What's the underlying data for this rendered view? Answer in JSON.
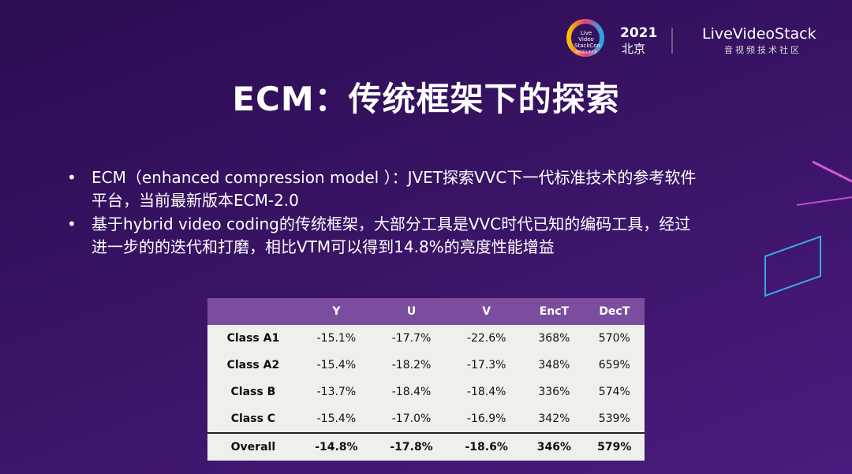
{
  "header": {
    "logo": {
      "lines": [
        "Live Video",
        "StackCon",
        "音视频技术大会"
      ]
    },
    "year": "2021",
    "city": "北京",
    "brand": "LiveVideoStack",
    "brand_sub": "音视频技术社区"
  },
  "title": "ECM：传统框架下的探索",
  "bullets": [
    {
      "lines": [
        "ECM（enhanced compression model ）：JVET探索VVC下一代标准技术的参考软件",
        "平台，当前最新版本ECM-2.0"
      ]
    },
    {
      "lines": [
        "基于hybrid video coding的传统框架，大部分工具是VVC时代已知的编码工具，经过",
        "进一步的的迭代和打磨，相比VTM可以得到14.8%的亮度性能增益"
      ]
    }
  ],
  "table": {
    "columns": [
      "Y",
      "U",
      "V",
      "EncT",
      "DecT"
    ],
    "rows": [
      {
        "label": "Class A1",
        "cells": [
          "-15.1%",
          "-17.7%",
          "-22.6%",
          "368%",
          "570%"
        ]
      },
      {
        "label": "Class A2",
        "cells": [
          "-15.4%",
          "-18.2%",
          "-17.3%",
          "348%",
          "659%"
        ]
      },
      {
        "label": "Class B",
        "cells": [
          "-13.7%",
          "-18.4%",
          "-18.4%",
          "336%",
          "574%"
        ]
      },
      {
        "label": "Class C",
        "cells": [
          "-15.4%",
          "-17.0%",
          "-16.9%",
          "342%",
          "539%"
        ]
      },
      {
        "label": "Overall",
        "cells": [
          "-14.8%",
          "-17.8%",
          "-18.6%",
          "346%",
          "579%"
        ]
      }
    ]
  }
}
